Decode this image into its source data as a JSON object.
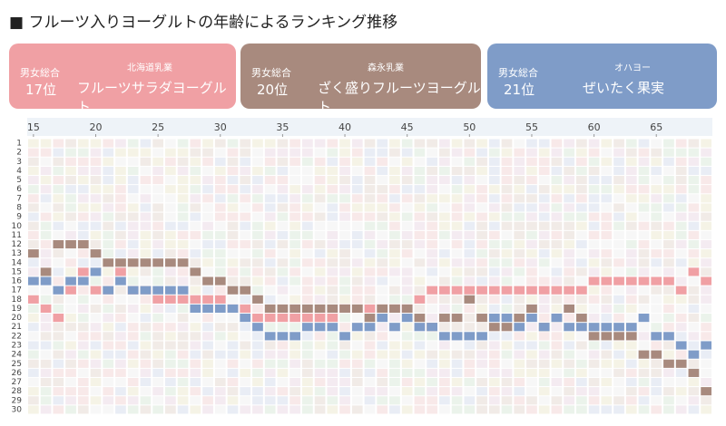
{
  "chart_data": {
    "type": "rank-grid",
    "title": "フルーツ入りヨーグルトの年齢によるランキング推移",
    "xlim": [
      14.5,
      69.5
    ],
    "xticks": [
      15,
      20,
      25,
      30,
      35,
      40,
      45,
      50,
      55,
      60,
      65
    ],
    "ylim": [
      0.5,
      30.5
    ],
    "yticks": [
      1,
      2,
      3,
      4,
      5,
      6,
      7,
      8,
      9,
      10,
      11,
      12,
      13,
      14,
      15,
      16,
      17,
      18,
      19,
      20,
      21,
      22,
      23,
      24,
      25,
      26,
      27,
      28,
      29,
      30
    ],
    "x": [
      15,
      16,
      17,
      18,
      19,
      20,
      21,
      22,
      23,
      24,
      25,
      26,
      27,
      28,
      29,
      30,
      31,
      32,
      33,
      34,
      35,
      36,
      37,
      38,
      39,
      40,
      41,
      42,
      43,
      44,
      45,
      46,
      47,
      48,
      49,
      50,
      51,
      52,
      53,
      54,
      55,
      56,
      57,
      58,
      59,
      60,
      61,
      62,
      63,
      64,
      65,
      66,
      67,
      68,
      69
    ],
    "series": [
      {
        "name": "フルーツサラダヨーグルト",
        "maker": "北海道乳業",
        "overall_label": "男女総合",
        "overall_rank": "17位",
        "color": "#f0a0a4",
        "values": [
          18,
          19,
          20,
          17,
          15,
          17,
          17,
          15,
          17,
          17,
          18,
          18,
          18,
          18,
          18,
          18,
          19,
          19,
          20,
          20,
          20,
          20,
          20,
          20,
          20,
          19,
          19,
          19,
          19,
          19,
          19,
          18,
          17,
          17,
          17,
          17,
          17,
          17,
          17,
          17,
          17,
          17,
          17,
          17,
          17,
          16,
          16,
          16,
          16,
          16,
          16,
          16,
          17,
          15,
          16
        ]
      },
      {
        "name": "ざく盛りフルーツヨーグルト",
        "maker": "森永乳業",
        "overall_label": "男女総合",
        "overall_rank": "20位",
        "color": "#a88a7e",
        "values": [
          13,
          15,
          12,
          12,
          12,
          13,
          14,
          14,
          14,
          14,
          14,
          14,
          14,
          15,
          16,
          16,
          17,
          17,
          18,
          19,
          19,
          19,
          19,
          19,
          19,
          19,
          19,
          20,
          19,
          19,
          19,
          20,
          21,
          20,
          20,
          18,
          20,
          21,
          21,
          20,
          19,
          21,
          20,
          19,
          20,
          22,
          22,
          22,
          22,
          24,
          24,
          25,
          25,
          26,
          28
        ]
      },
      {
        "name": "ぜいたく果実",
        "maker": "オハヨー",
        "overall_label": "男女総合",
        "overall_rank": "21位",
        "color": "#7f9cc8",
        "values": [
          16,
          16,
          17,
          16,
          16,
          15,
          17,
          16,
          17,
          17,
          17,
          17,
          17,
          19,
          19,
          19,
          19,
          20,
          21,
          22,
          22,
          22,
          21,
          21,
          21,
          22,
          21,
          21,
          20,
          21,
          20,
          21,
          21,
          22,
          22,
          22,
          22,
          20,
          20,
          21,
          20,
          21,
          20,
          21,
          21,
          21,
          21,
          21,
          21,
          20,
          22,
          22,
          23,
          24,
          23
        ]
      }
    ]
  }
}
